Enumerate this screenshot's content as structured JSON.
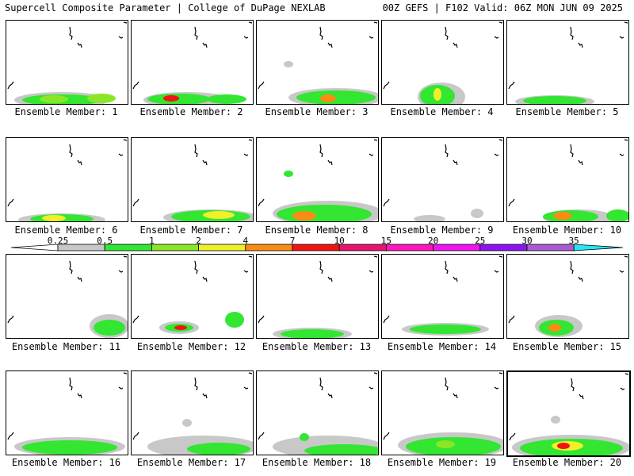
{
  "header": {
    "left": "Supercell Composite Parameter | College of DuPage NEXLAB",
    "right": "00Z GEFS | F102 Valid: 06Z MON JUN 09 2025"
  },
  "panels": [
    {
      "caption": "Ensemble Member: 1"
    },
    {
      "caption": "Ensemble Member: 2"
    },
    {
      "caption": "Ensemble Member: 3"
    },
    {
      "caption": "Ensemble Member: 4"
    },
    {
      "caption": "Ensemble Member: 5"
    },
    {
      "caption": "Ensemble Member: 6"
    },
    {
      "caption": "Ensemble Member: 7"
    },
    {
      "caption": "Ensemble Member: 8"
    },
    {
      "caption": "Ensemble Member: 9"
    },
    {
      "caption": "Ensemble Member: 10"
    },
    {
      "caption": "Ensemble Member: 11"
    },
    {
      "caption": "Ensemble Member: 12"
    },
    {
      "caption": "Ensemble Member: 13"
    },
    {
      "caption": "Ensemble Member: 14"
    },
    {
      "caption": "Ensemble Member: 15"
    },
    {
      "caption": "Ensemble Member: 16"
    },
    {
      "caption": "Ensemble Member: 17"
    },
    {
      "caption": "Ensemble Member: 18"
    },
    {
      "caption": "Ensemble Member: 19"
    },
    {
      "caption": "Ensemble Member: 20",
      "selected": true
    }
  ],
  "colorbar": {
    "labels": [
      "0.25",
      "0.5",
      "1",
      "2",
      "4",
      "7",
      "10",
      "15",
      "20",
      "25",
      "30",
      "35"
    ],
    "colors": [
      "#ffffff",
      "#c8c8c8",
      "#32e632",
      "#8ce628",
      "#f0f028",
      "#fa8c14",
      "#f01414",
      "#e6146e",
      "#ff14be",
      "#f014f0",
      "#8c14f0",
      "#aa5ad2",
      "#28e6f0"
    ]
  }
}
